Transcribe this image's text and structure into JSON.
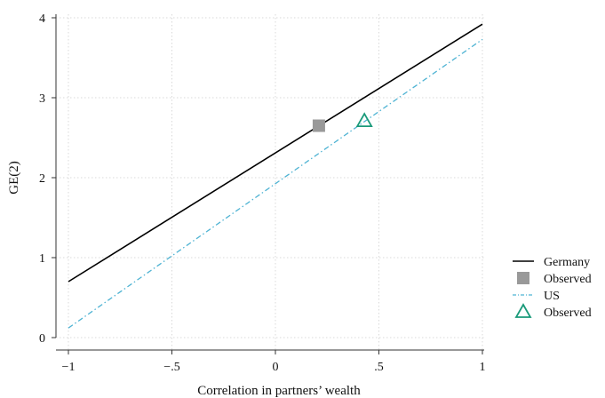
{
  "chart_data": {
    "type": "line",
    "xlabel": "Correlation in partners’ wealth",
    "ylabel": "GE(2)",
    "xlim": [
      -1,
      1
    ],
    "ylim": [
      0,
      4
    ],
    "xticks": [
      {
        "value": -1,
        "label": "−1"
      },
      {
        "value": -0.5,
        "label": "−.5"
      },
      {
        "value": 0,
        "label": "0"
      },
      {
        "value": 0.5,
        "label": ".5"
      },
      {
        "value": 1,
        "label": "1"
      }
    ],
    "yticks": [
      {
        "value": 0,
        "label": "0"
      },
      {
        "value": 1,
        "label": "1"
      },
      {
        "value": 2,
        "label": "2"
      },
      {
        "value": 3,
        "label": "3"
      },
      {
        "value": 4,
        "label": "4"
      }
    ],
    "grid": true,
    "legend_position": "right",
    "series": [
      {
        "name": "Germany",
        "kind": "line",
        "style": "solid",
        "color": "#000000",
        "x": [
          -1,
          1
        ],
        "y": [
          0.7,
          3.92
        ]
      },
      {
        "name": "Observed",
        "kind": "marker",
        "marker": "square",
        "color": "#999999",
        "x": [
          0.21
        ],
        "y": [
          2.65
        ]
      },
      {
        "name": "US",
        "kind": "line",
        "style": "dash-dot",
        "color": "#4eb3d3",
        "x": [
          -1,
          1
        ],
        "y": [
          0.12,
          3.73
        ]
      },
      {
        "name": "Observed",
        "kind": "marker",
        "marker": "triangle",
        "color": "#1a9a7a",
        "x": [
          0.43
        ],
        "y": [
          2.71
        ]
      }
    ]
  }
}
